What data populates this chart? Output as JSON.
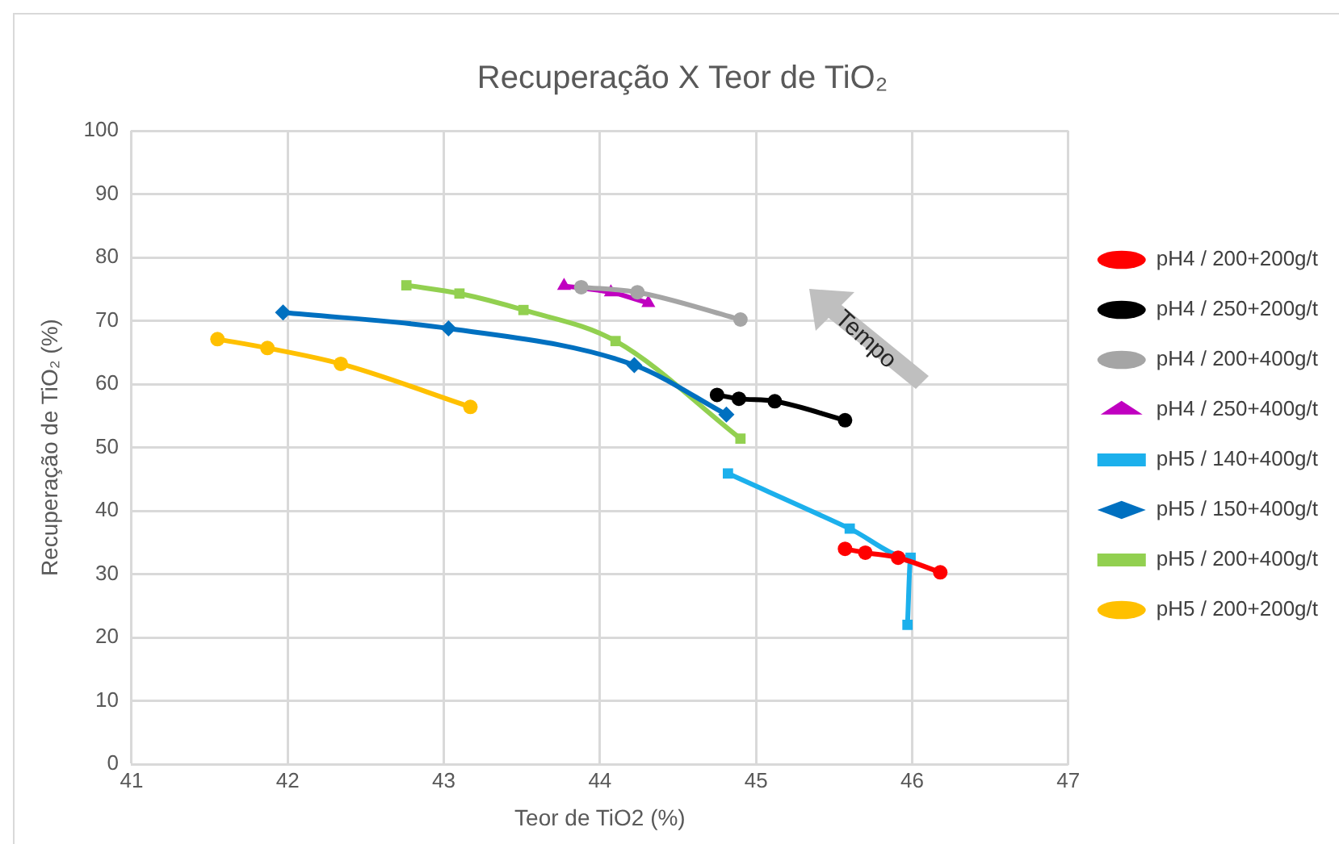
{
  "chart_data": {
    "type": "line",
    "title": "Recuperação X Teor de TiO₂",
    "xlabel": "Teor de TiO2 (%)",
    "ylabel": "Recuperação de TiO₂ (%)",
    "xlim": [
      41,
      47
    ],
    "xticks": [
      41,
      42,
      43,
      44,
      45,
      46,
      47
    ],
    "ylim": [
      0,
      100
    ],
    "yticks": [
      0,
      10,
      20,
      30,
      40,
      50,
      60,
      70,
      80,
      90,
      100
    ],
    "grid": true,
    "legend": "right",
    "line_style": "solid",
    "annotations": [
      "Tempo"
    ],
    "series": [
      {
        "name": "pH4 / 200+200g/t",
        "color": "#ff0000",
        "marker": "circle",
        "x": [
          45.57,
          45.7,
          45.91,
          46.18
        ],
        "values": [
          34.0,
          33.4,
          32.6,
          30.3
        ]
      },
      {
        "name": "pH4 / 250+200g/t",
        "color": "#000000",
        "marker": "circle",
        "x": [
          44.75,
          44.89,
          45.12,
          45.57
        ],
        "values": [
          58.3,
          57.7,
          57.3,
          54.3
        ]
      },
      {
        "name": "pH4 / 200+400g/t",
        "color": "#a5a5a5",
        "marker": "circle",
        "x": [
          43.88,
          44.24,
          44.9
        ],
        "values": [
          75.3,
          74.5,
          70.2
        ]
      },
      {
        "name": "pH4 / 250+400g/t",
        "color": "#c000c0",
        "marker": "triangle",
        "x": [
          43.77,
          44.07,
          44.31
        ],
        "values": [
          75.5,
          74.5,
          72.8
        ]
      },
      {
        "name": "pH5 / 140+400g/t",
        "color": "#1cb0ec",
        "marker": "square",
        "x": [
          44.82,
          45.6,
          45.99,
          45.97
        ],
        "values": [
          45.9,
          37.2,
          32.6,
          22.0
        ]
      },
      {
        "name": "pH5 / 150+400g/t",
        "color": "#0070c0",
        "marker": "diamond",
        "x": [
          41.97,
          43.03,
          44.22,
          44.81
        ],
        "values": [
          71.3,
          68.8,
          63.0,
          55.2
        ]
      },
      {
        "name": "pH5 / 200+400g/t",
        "color": "#92d050",
        "marker": "square",
        "x": [
          42.76,
          43.1,
          43.51,
          44.1,
          44.9
        ],
        "values": [
          75.6,
          74.3,
          71.7,
          66.8,
          51.4
        ]
      },
      {
        "name": "pH5 / 200+200g/t",
        "color": "#ffc000",
        "marker": "circle",
        "x": [
          41.55,
          41.87,
          42.34,
          43.17
        ],
        "values": [
          67.1,
          65.7,
          63.2,
          56.4
        ]
      }
    ]
  }
}
